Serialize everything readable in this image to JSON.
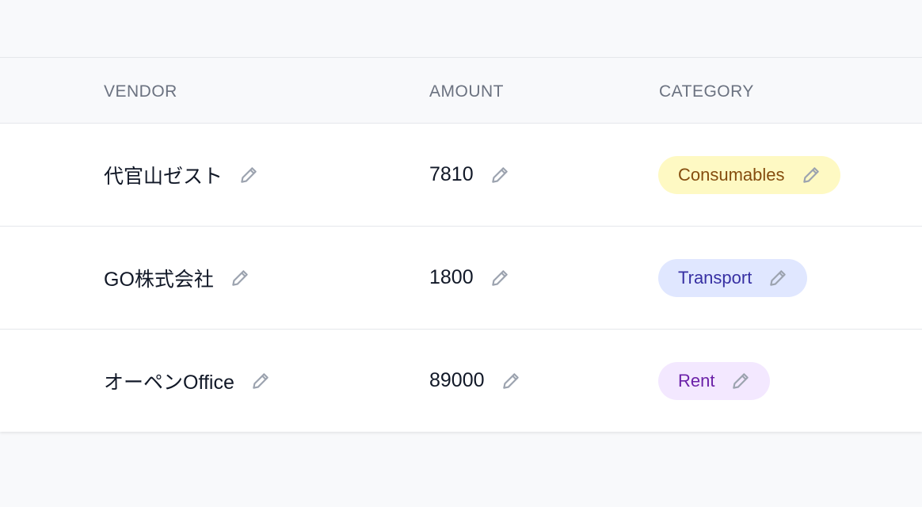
{
  "table": {
    "headers": [
      "VENDOR",
      "AMOUNT",
      "CATEGORY"
    ],
    "rows": [
      {
        "vendor": "代官山ゼスト",
        "amount": "7810",
        "category": "Consumables",
        "category_bg": "#fef9c3",
        "category_color": "#854d0e"
      },
      {
        "vendor": "GO株式会社",
        "amount": "1800",
        "category": "Transport",
        "category_bg": "#e0e7ff",
        "category_color": "#3730a3"
      },
      {
        "vendor": "オーペンOffice",
        "amount": "89000",
        "category": "Rent",
        "category_bg": "#f3e8ff",
        "category_color": "#6b21a8"
      }
    ]
  },
  "icons": {
    "edit": "pencil-icon"
  }
}
